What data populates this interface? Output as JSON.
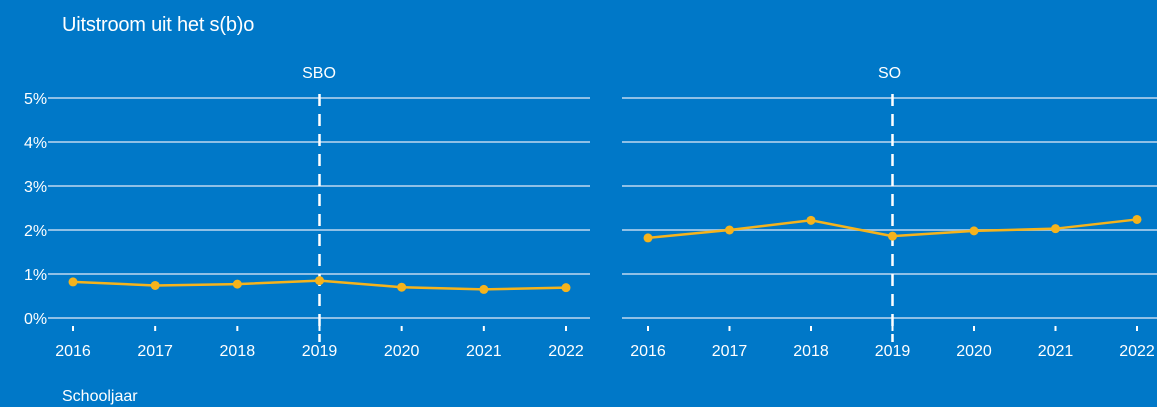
{
  "chart_data": {
    "type": "line",
    "title": "Uitstroom uit het s(b)o",
    "xlabel": "Schooljaar",
    "ylabel": "",
    "ylim": [
      0,
      5
    ],
    "yticks": [
      "0%",
      "1%",
      "2%",
      "3%",
      "4%",
      "5%"
    ],
    "ytick_values": [
      0,
      1,
      2,
      3,
      4,
      5
    ],
    "categories": [
      "2016",
      "2017",
      "2018",
      "2019",
      "2020",
      "2021",
      "2022"
    ],
    "marker_category": "2019",
    "grid": true,
    "panels": [
      {
        "name": "SBO",
        "series": [
          {
            "values": [
              0.82,
              0.74,
              0.77,
              0.85,
              0.7,
              0.65,
              0.69
            ]
          }
        ]
      },
      {
        "name": "SO",
        "series": [
          {
            "values": [
              1.82,
              2.0,
              2.22,
              1.86,
              1.98,
              2.03,
              2.24
            ]
          }
        ]
      }
    ]
  },
  "colors": {
    "background": "#0078c8",
    "gridline": "#8fc0e6",
    "series": "#f5b31c",
    "text": "#ffffff"
  }
}
